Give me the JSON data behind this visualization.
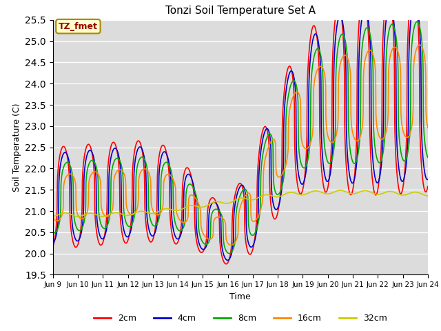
{
  "title": "Tonzi Soil Temperature Set A",
  "xlabel": "Time",
  "ylabel": "Soil Temperature (C)",
  "ylim": [
    19.5,
    25.5
  ],
  "yticks": [
    19.5,
    20.0,
    20.5,
    21.0,
    21.5,
    22.0,
    22.5,
    23.0,
    23.5,
    24.0,
    24.5,
    25.0,
    25.5
  ],
  "xtick_labels": [
    "Jun 9",
    "Jun 10",
    "Jun 11",
    "Jun 12",
    "Jun 13",
    "Jun 14",
    "Jun 15",
    "Jun 16",
    "Jun 17",
    "Jun 18",
    "Jun 19",
    "Jun 20",
    "Jun 21",
    "Jun 22",
    "Jun 23",
    "Jun 24"
  ],
  "annotation_text": "TZ_fmet",
  "annotation_bbox_facecolor": "#ffffcc",
  "annotation_bbox_edgecolor": "#aa8800",
  "line_colors": [
    "#ff0000",
    "#0000cc",
    "#00aa00",
    "#ff8800",
    "#cccc00"
  ],
  "line_labels": [
    "2cm",
    "4cm",
    "8cm",
    "16cm",
    "32cm"
  ],
  "line_widths": [
    1.2,
    1.2,
    1.2,
    1.2,
    1.2
  ],
  "bg_color": "#dcdcdc",
  "fig_bg_color": "#ffffff"
}
